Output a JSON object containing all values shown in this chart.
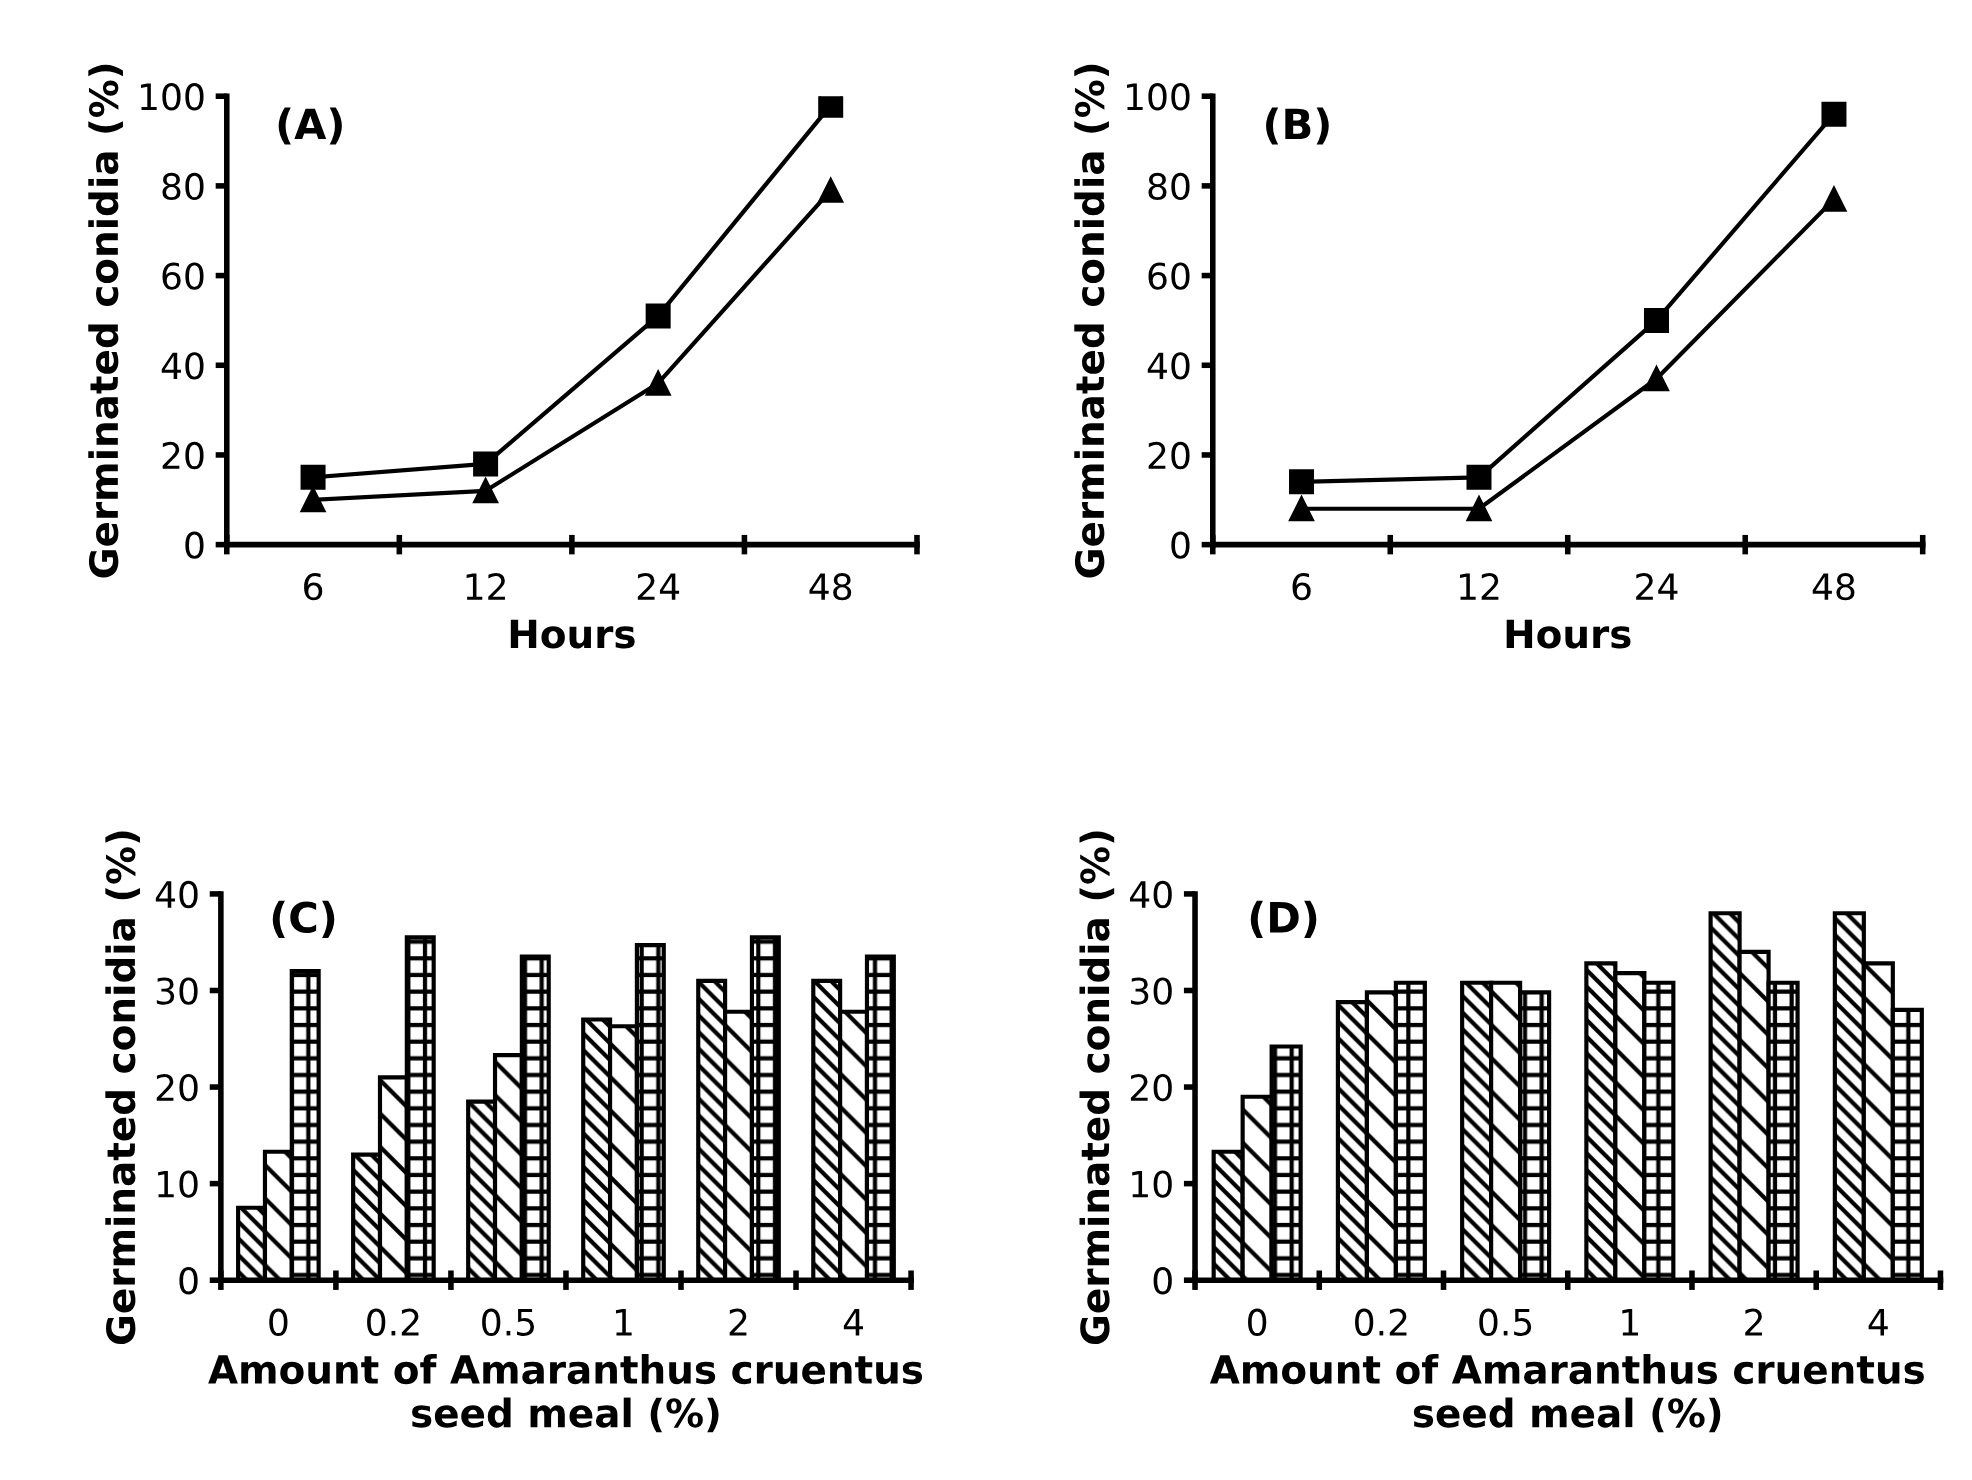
{
  "chart_data": [
    {
      "type": "line",
      "title": "(A)",
      "xlabel": "Hours",
      "ylabel": "Germinated conidia (%)",
      "categories": [
        "6",
        "12",
        "24",
        "48"
      ],
      "ylim": [
        0,
        100
      ],
      "yticks": [
        0,
        20,
        40,
        60,
        80,
        100
      ],
      "grid": false,
      "line_style": "solid",
      "series": [
        {
          "color": "#000000",
          "marker": "square",
          "values": [
            15,
            18,
            51,
            98
          ]
        },
        {
          "color": "#000000",
          "marker": "triangle",
          "values": [
            10,
            12,
            36,
            79
          ]
        }
      ]
    },
    {
      "type": "line",
      "title": "(B)",
      "xlabel": "Hours",
      "ylabel": "Germinated conidia (%)",
      "categories": [
        "6",
        "12",
        "24",
        "48"
      ],
      "ylim": [
        0,
        100
      ],
      "yticks": [
        0,
        20,
        40,
        60,
        80,
        100
      ],
      "grid": false,
      "line_style": "solid",
      "series": [
        {
          "color": "#000000",
          "marker": "square",
          "values": [
            14,
            15,
            50,
            96
          ]
        },
        {
          "color": "#000000",
          "marker": "triangle",
          "values": [
            8,
            8,
            37,
            77
          ]
        }
      ]
    },
    {
      "type": "bar",
      "title": "(C)",
      "xlabel": "Amount of Amaranthus cruentus\nseed meal (%)",
      "ylabel": "Germinated conidia (%)",
      "categories": [
        "0",
        "0.2",
        "0.5",
        "1",
        "2",
        "4"
      ],
      "ylim": [
        0,
        40
      ],
      "yticks": [
        0,
        10,
        20,
        30,
        40
      ],
      "grid": false,
      "series": [
        {
          "color": "#000000",
          "values": [
            7.5,
            13,
            18.5,
            27,
            31,
            31
          ]
        },
        {
          "color": "#000000",
          "values": [
            13.3,
            21,
            23.3,
            26.3,
            27.8,
            27.8
          ]
        },
        {
          "color": "#000000",
          "values": [
            32,
            35.5,
            33.5,
            34.7,
            35.5,
            33.5
          ]
        }
      ]
    },
    {
      "type": "bar",
      "title": "(D)",
      "xlabel": "Amount of Amaranthus cruentus\nseed meal (%)",
      "ylabel": "Germinated conidia (%)",
      "categories": [
        "0",
        "0.2",
        "0.5",
        "1",
        "2",
        "4"
      ],
      "ylim": [
        0,
        40
      ],
      "yticks": [
        0,
        10,
        20,
        30,
        40
      ],
      "grid": false,
      "series": [
        {
          "color": "#000000",
          "values": [
            13.3,
            28.8,
            30.8,
            32.8,
            38,
            38
          ]
        },
        {
          "color": "#000000",
          "values": [
            19,
            29.8,
            30.8,
            31.8,
            34,
            32.8
          ]
        },
        {
          "color": "#000000",
          "values": [
            24.2,
            30.8,
            29.8,
            30.8,
            30.8,
            28
          ]
        }
      ]
    }
  ]
}
